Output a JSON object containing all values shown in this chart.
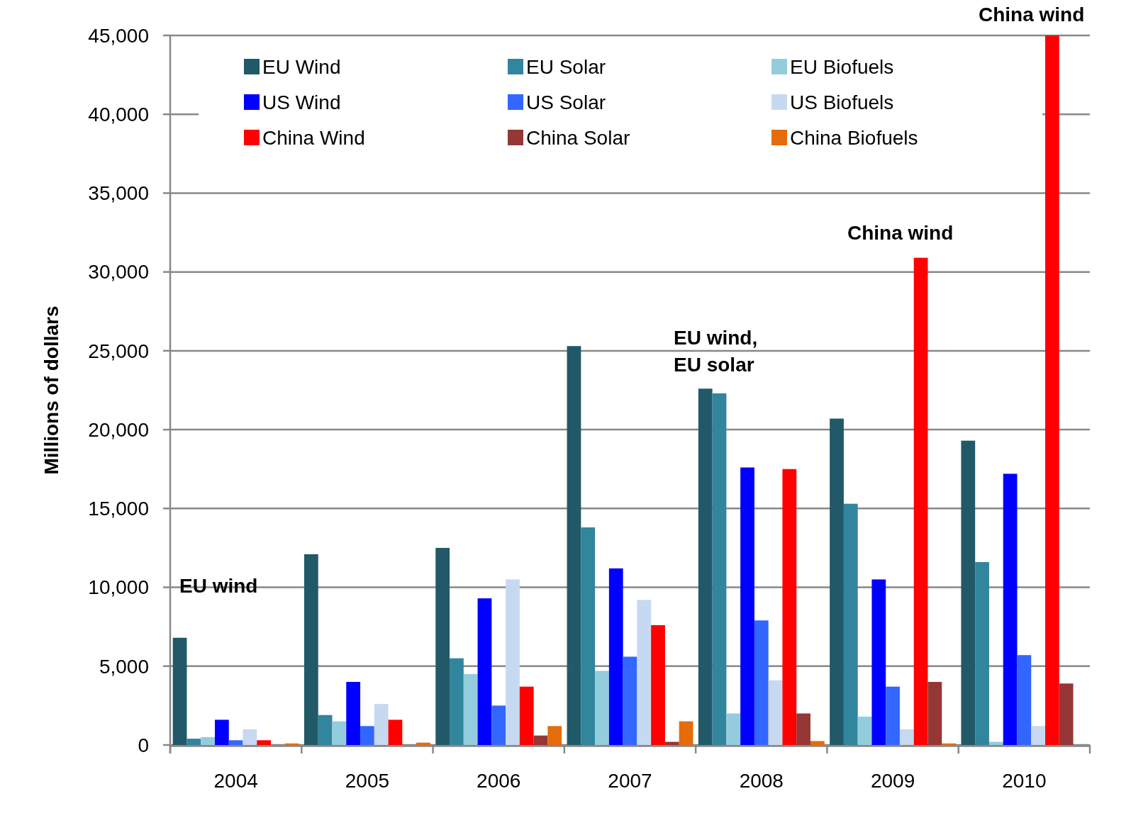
{
  "chart_data": {
    "type": "bar",
    "ylabel": "Millions of dollars",
    "categories": [
      "2004",
      "2005",
      "2006",
      "2007",
      "2008",
      "2009",
      "2010"
    ],
    "series": [
      {
        "name": "EU Wind",
        "color": "#215968",
        "values": [
          6800,
          12100,
          12500,
          25300,
          22600,
          20700,
          19300
        ]
      },
      {
        "name": "EU Solar",
        "color": "#31859c",
        "values": [
          400,
          1900,
          5500,
          13800,
          22300,
          15300,
          11600
        ]
      },
      {
        "name": "EU Biofuels",
        "color": "#93cddd",
        "values": [
          500,
          1500,
          4500,
          4700,
          2000,
          1800,
          200
        ]
      },
      {
        "name": "US Wind",
        "color": "#0000ff",
        "values": [
          1600,
          4000,
          9300,
          11200,
          17600,
          10500,
          17200
        ]
      },
      {
        "name": "US Solar",
        "color": "#3366ff",
        "values": [
          300,
          1200,
          2500,
          5600,
          7900,
          3700,
          5700
        ]
      },
      {
        "name": "US Biofuels",
        "color": "#c6d9f1",
        "values": [
          1000,
          2600,
          10500,
          9200,
          4100,
          1000,
          1200
        ]
      },
      {
        "name": "China Wind",
        "color": "#ff0000",
        "values": [
          300,
          1600,
          3700,
          7600,
          17500,
          30900,
          45000
        ]
      },
      {
        "name": "China Solar",
        "color": "#953735",
        "values": [
          null,
          null,
          600,
          200,
          2000,
          4000,
          3900
        ]
      },
      {
        "name": "China Biofuels",
        "color": "#e46c0a",
        "values": [
          100,
          150,
          1200,
          1500,
          250,
          100,
          0
        ]
      }
    ],
    "ylim": [
      0,
      45000
    ],
    "yticks": [
      {
        "value": 0,
        "label": "0"
      },
      {
        "value": 5000,
        "label": "5,000"
      },
      {
        "value": 10000,
        "label": "10,000"
      },
      {
        "value": 15000,
        "label": "15,000"
      },
      {
        "value": 20000,
        "label": "20,000"
      },
      {
        "value": 25000,
        "label": "25,000"
      },
      {
        "value": 30000,
        "label": "30,000"
      },
      {
        "value": 35000,
        "label": "35,000"
      },
      {
        "value": 40000,
        "label": "40,000"
      },
      {
        "value": 45000,
        "label": "45,000"
      }
    ],
    "grid": "y",
    "legend": "top",
    "annotations": [
      "EU wind",
      "EU wind,\nEU solar",
      "China wind",
      "China wind"
    ]
  }
}
